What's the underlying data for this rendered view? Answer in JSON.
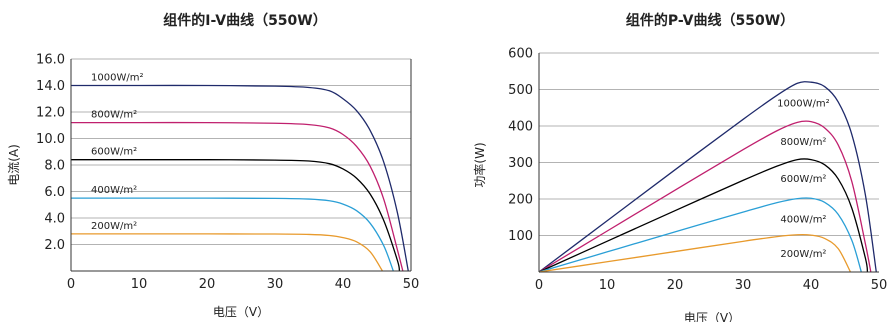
{
  "chart_data": [
    {
      "type": "line",
      "title": "组件的I-V曲线（550W）",
      "xlabel": "电压（V）",
      "ylabel": "电流(A)",
      "xlim": [
        0,
        50
      ],
      "ylim": [
        0,
        16
      ],
      "x_ticks": [
        "0",
        "10",
        "20",
        "30",
        "40",
        "50"
      ],
      "y_ticks": [
        "2.0",
        "4.0",
        "6.0",
        "8.0",
        "10.0",
        "12.0",
        "14.0",
        "16.0"
      ],
      "grid": "horizontal",
      "series": [
        {
          "name": "1000W/m²",
          "color": "#1f2a6b",
          "isc": 14.0,
          "voc": 49.6,
          "x": [
            0,
            10,
            20,
            30,
            35,
            38,
            40,
            42,
            44,
            46,
            48,
            49.6
          ],
          "y": [
            14.0,
            14.0,
            14.0,
            13.95,
            13.85,
            13.6,
            13.0,
            12.1,
            10.6,
            8.2,
            4.4,
            0
          ]
        },
        {
          "name": "800W/m²",
          "color": "#c0206e",
          "isc": 11.2,
          "voc": 48.8,
          "x": [
            0,
            10,
            20,
            30,
            35,
            38,
            40,
            42,
            44,
            46,
            48,
            48.8
          ],
          "y": [
            11.2,
            11.2,
            11.2,
            11.15,
            11.05,
            10.8,
            10.3,
            9.4,
            7.9,
            5.4,
            1.6,
            0
          ]
        },
        {
          "name": "600W/m²",
          "color": "#000000",
          "isc": 8.4,
          "voc": 48.3,
          "x": [
            0,
            10,
            20,
            30,
            35,
            38,
            40,
            42,
            44,
            46,
            48,
            48.3
          ],
          "y": [
            8.4,
            8.4,
            8.4,
            8.37,
            8.3,
            8.1,
            7.7,
            7.0,
            5.8,
            3.8,
            0.8,
            0
          ]
        },
        {
          "name": "400W/m²",
          "color": "#2a9fd6",
          "isc": 5.5,
          "voc": 47.4,
          "x": [
            0,
            10,
            20,
            30,
            35,
            38,
            40,
            42,
            44,
            46,
            47.4
          ],
          "y": [
            5.5,
            5.5,
            5.5,
            5.48,
            5.43,
            5.3,
            5.05,
            4.55,
            3.6,
            1.9,
            0
          ]
        },
        {
          "name": "200W/m²",
          "color": "#e89a2c",
          "isc": 2.8,
          "voc": 45.8,
          "x": [
            0,
            10,
            20,
            30,
            35,
            38,
            40,
            42,
            44,
            45.8
          ],
          "y": [
            2.8,
            2.8,
            2.8,
            2.79,
            2.76,
            2.68,
            2.52,
            2.2,
            1.45,
            0
          ]
        }
      ]
    },
    {
      "type": "line",
      "title": "组件的P-V曲线（550W）",
      "xlabel": "电压（V）",
      "ylabel": "功率(W)",
      "xlim": [
        0,
        50
      ],
      "ylim": [
        0,
        600
      ],
      "x_ticks": [
        "0",
        "10",
        "20",
        "30",
        "40",
        "50"
      ],
      "y_ticks": [
        "100",
        "200",
        "300",
        "400",
        "500",
        "600"
      ],
      "grid": "horizontal",
      "series": [
        {
          "name": "1000W/m²",
          "color": "#1f2a6b",
          "pmax": 530,
          "x": [
            0,
            10,
            20,
            30,
            35,
            38,
            40,
            42,
            44,
            46,
            48,
            49.6
          ],
          "y": [
            0,
            140,
            280,
            418,
            484,
            517,
            520,
            508,
            466,
            377,
            211,
            0
          ]
        },
        {
          "name": "800W/m²",
          "color": "#c0206e",
          "pmax": 425,
          "x": [
            0,
            10,
            20,
            30,
            35,
            38,
            40,
            42,
            44,
            46,
            48,
            48.8
          ],
          "y": [
            0,
            112,
            224,
            335,
            387,
            410,
            412,
            395,
            348,
            248,
            77,
            0
          ]
        },
        {
          "name": "600W/m²",
          "color": "#000000",
          "pmax": 323,
          "x": [
            0,
            10,
            20,
            30,
            35,
            38,
            40,
            42,
            44,
            46,
            48,
            48.3
          ],
          "y": [
            0,
            84,
            168,
            251,
            290,
            308,
            308,
            294,
            255,
            175,
            38,
            0
          ]
        },
        {
          "name": "400W/m²",
          "color": "#2a9fd6",
          "pmax": 212,
          "x": [
            0,
            10,
            20,
            30,
            35,
            38,
            40,
            42,
            44,
            46,
            47.4
          ],
          "y": [
            0,
            55,
            110,
            164,
            190,
            201,
            202,
            191,
            158,
            87,
            0
          ]
        },
        {
          "name": "200W/m²",
          "color": "#e89a2c",
          "pmax": 118,
          "x": [
            0,
            10,
            20,
            30,
            35,
            38,
            40,
            42,
            44,
            45.8
          ],
          "y": [
            0,
            28,
            56,
            84,
            97,
            102,
            101,
            92,
            64,
            0
          ]
        }
      ]
    }
  ]
}
